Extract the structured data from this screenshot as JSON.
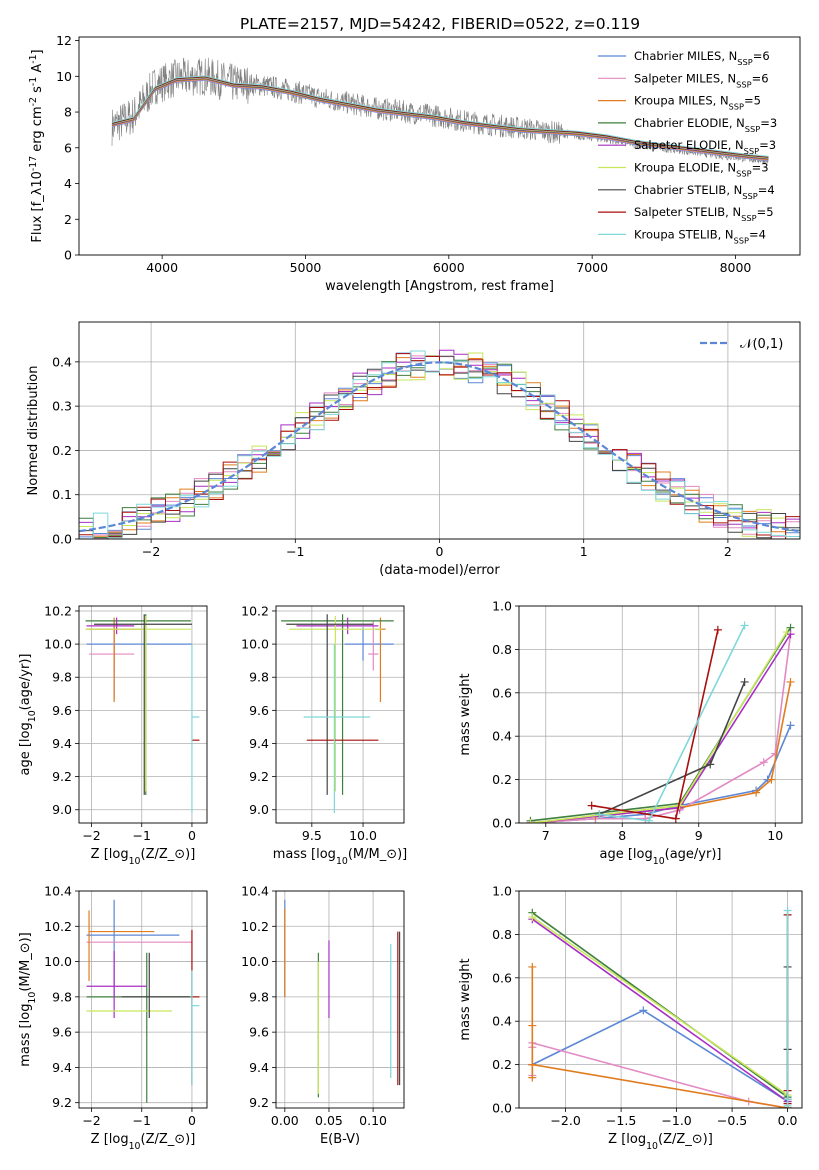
{
  "figure_title": "PLATE=2157, MJD=54242, FIBERID=0522, z=0.119",
  "models": [
    {
      "name": "Chabrier MILES, N$_{SSP}$=6",
      "color": "#5b87d6"
    },
    {
      "name": "Salpeter MILES, N$_{SSP}$=6",
      "color": "#e28ac3"
    },
    {
      "name": "Kroupa MILES, N$_{SSP}$=5",
      "color": "#e07c1f"
    },
    {
      "name": "Chabrier ELODIE, N$_{SSP}$=3",
      "color": "#3f7f3f"
    },
    {
      "name": "Salpeter ELODIE, N$_{SSP}$=3",
      "color": "#a92fc4"
    },
    {
      "name": "Kroupa ELODIE, N$_{SSP}$=3",
      "color": "#c7e65a"
    },
    {
      "name": "Chabrier STELIB, N$_{SSP}$=4",
      "color": "#444444"
    },
    {
      "name": "Salpeter STELIB, N$_{SSP}$=5",
      "color": "#a80f0f"
    },
    {
      "name": "Kroupa STELIB, N$_{SSP}$=4",
      "color": "#7fd7d9"
    }
  ],
  "chart_data": [
    {
      "id": "spectrum",
      "type": "line",
      "xlabel": "wavelength [Angstrom, rest frame]",
      "ylabel": "Flux [f$_\\lambda$10$^{-17}$ erg cm$^{-2}$ s$^{-1}$ A$^{-1}$]",
      "xlim": [
        3420,
        8450
      ],
      "ylim": [
        0,
        12.2
      ],
      "xticks": [
        4000,
        5000,
        6000,
        7000,
        8000
      ],
      "yticks": [
        0,
        2,
        4,
        6,
        8,
        10,
        12
      ],
      "grid": false,
      "legend": "top-right",
      "observed": {
        "color": "#808080",
        "x": [
          3650,
          3800,
          3950,
          4100,
          4300,
          4500,
          4700,
          4900,
          5100,
          5300,
          5500,
          5700,
          5900,
          6100,
          6300,
          6500,
          6700,
          6900,
          7100,
          7300,
          7500,
          7700,
          7900,
          8100,
          8230
        ],
        "y": [
          7.2,
          7.8,
          9.5,
          9.9,
          10.0,
          9.6,
          9.5,
          9.2,
          8.8,
          8.5,
          8.2,
          8.0,
          7.8,
          7.5,
          7.3,
          7.1,
          6.9,
          6.7,
          6.5,
          6.2,
          6.0,
          5.8,
          5.6,
          5.4,
          5.3
        ]
      },
      "models_curve": {
        "x": [
          3650,
          3800,
          3950,
          4100,
          4300,
          4500,
          4700,
          4900,
          5100,
          5300,
          5500,
          5700,
          5900,
          6100,
          6300,
          6500,
          6700,
          6900,
          7100,
          7300,
          7500,
          7700,
          7900,
          8100,
          8230
        ],
        "y": [
          7.3,
          7.6,
          9.3,
          9.8,
          9.9,
          9.5,
          9.4,
          9.1,
          8.7,
          8.4,
          8.1,
          7.9,
          7.7,
          7.4,
          7.2,
          7.0,
          6.9,
          6.8,
          6.6,
          6.3,
          6.1,
          5.9,
          5.7,
          5.5,
          5.4
        ]
      }
    },
    {
      "id": "residuals",
      "type": "line",
      "xlabel": "(data-model)/error",
      "ylabel": "Normed distribution",
      "xlim": [
        -2.5,
        2.5
      ],
      "ylim": [
        0,
        0.49
      ],
      "xticks": [
        -2,
        -1,
        0,
        1,
        2
      ],
      "yticks": [
        0.0,
        0.1,
        0.2,
        0.3,
        0.4
      ],
      "grid": true,
      "legend": "top-right",
      "reference_curve": {
        "name": "$\\mathcal{N}(0,1)$",
        "mean": 0,
        "sigma": 1,
        "color": "#5b87d6"
      },
      "histogram_bin_width": 0.1
    },
    {
      "id": "age_vs_Z",
      "type": "scatter",
      "xlabel": "Z [log$_{10}$($Z$/$Z_\\odot$)]",
      "ylabel": "age  [log$_{10}$($age$/$yr$)]",
      "xlim": [
        -2.25,
        0.3
      ],
      "ylim": [
        8.92,
        10.23
      ],
      "xticks": [
        -2,
        -1,
        0
      ],
      "yticks": [
        9.0,
        9.2,
        9.4,
        9.6,
        9.8,
        10.0,
        10.2
      ],
      "grid": true,
      "series": [
        {
          "model": 0,
          "x": -1.55,
          "xerr": [
            0.55,
            1.55
          ],
          "y": 10.0,
          "yerr": [
            0.33,
            0.1
          ]
        },
        {
          "model": 1,
          "x": -1.55,
          "xerr": [
            0.5,
            0.4
          ],
          "y": 9.94,
          "yerr": [
            0.1,
            0.2
          ]
        },
        {
          "model": 2,
          "x": -1.55,
          "xerr": [
            0.55,
            0.55
          ],
          "y": 10.09,
          "yerr": [
            0.44,
            0.07
          ]
        },
        {
          "model": 3,
          "x": -0.92,
          "xerr": [
            1.2,
            0.9
          ],
          "y": 10.14,
          "yerr": [
            1.05,
            0.04
          ]
        },
        {
          "model": 4,
          "x": -1.5,
          "xerr": [
            0.6,
            0.35
          ],
          "y": 10.11,
          "yerr": [
            0.05,
            0.05
          ]
        },
        {
          "model": 5,
          "x": -0.92,
          "xerr": [
            1.2,
            0.9
          ],
          "y": 10.09,
          "yerr": [
            0.98,
            0.08
          ]
        },
        {
          "model": 6,
          "x": -0.95,
          "xerr": [
            1.0,
            0.95
          ],
          "y": 10.12,
          "yerr": [
            1.03,
            0.06
          ]
        },
        {
          "model": 7,
          "x": 0.0,
          "xerr": [
            0.0,
            0.15
          ],
          "y": 9.42,
          "yerr": [
            0.0,
            0.0
          ]
        },
        {
          "model": 8,
          "x": 0.0,
          "xerr": [
            0.0,
            0.15
          ],
          "y": 9.56,
          "yerr": [
            0.58,
            0.44
          ]
        }
      ]
    },
    {
      "id": "age_vs_mass",
      "type": "scatter",
      "xlabel": "mass [log$_{10}$($M$/$M_\\odot$)]",
      "ylabel": "",
      "xlim": [
        9.15,
        10.4
      ],
      "ylim": [
        8.92,
        10.23
      ],
      "xticks": [
        9.5,
        10.0
      ],
      "yticks": [
        9.0,
        9.2,
        9.4,
        9.6,
        9.8,
        10.0,
        10.2
      ],
      "grid": true,
      "series": [
        {
          "model": 0,
          "x": 10.0,
          "xerr": [
            0.18,
            0.3
          ],
          "y": 10.0,
          "yerr": [
            0.1,
            0.1
          ]
        },
        {
          "model": 1,
          "x": 10.1,
          "xerr": [
            0.05,
            0.05
          ],
          "y": 9.94,
          "yerr": [
            0.1,
            0.2
          ]
        },
        {
          "model": 2,
          "x": 10.17,
          "xerr": [
            0.05,
            0.05
          ],
          "y": 10.09,
          "yerr": [
            0.44,
            0.07
          ]
        },
        {
          "model": 3,
          "x": 9.8,
          "xerr": [
            0.6,
            0.5
          ],
          "y": 10.14,
          "yerr": [
            1.05,
            0.04
          ]
        },
        {
          "model": 4,
          "x": 9.85,
          "xerr": [
            0.5,
            0.3
          ],
          "y": 10.11,
          "yerr": [
            0.05,
            0.05
          ]
        },
        {
          "model": 5,
          "x": 9.73,
          "xerr": [
            0.45,
            0.45
          ],
          "y": 10.09,
          "yerr": [
            0.98,
            0.08
          ]
        },
        {
          "model": 6,
          "x": 9.65,
          "xerr": [
            0.4,
            0.45
          ],
          "y": 10.12,
          "yerr": [
            1.03,
            0.06
          ]
        },
        {
          "model": 7,
          "x": 9.8,
          "xerr": [
            0.35,
            0.35
          ],
          "y": 9.42,
          "yerr": [
            0.0,
            0.0
          ]
        },
        {
          "model": 8,
          "x": 9.72,
          "xerr": [
            0.3,
            0.35
          ],
          "y": 9.56,
          "yerr": [
            0.58,
            0.44
          ]
        }
      ]
    },
    {
      "id": "mass_weight_vs_age",
      "type": "line",
      "xlabel": "age  [log$_{10}$($age$/$yr$)]",
      "ylabel": "mass weight",
      "xlim": [
        6.65,
        10.35
      ],
      "ylim": [
        0,
        1.0
      ],
      "xticks": [
        7,
        8,
        9,
        10
      ],
      "yticks": [
        0.0,
        0.2,
        0.4,
        0.6,
        0.8,
        1.0
      ],
      "grid": true,
      "series": [
        {
          "model": 0,
          "x": [
            6.8,
            7.65,
            8.3,
            8.75,
            9.75,
            9.9,
            10.2
          ],
          "y": [
            0.0,
            0.02,
            0.04,
            0.08,
            0.15,
            0.2,
            0.45
          ]
        },
        {
          "model": 1,
          "x": [
            6.8,
            7.65,
            8.3,
            8.75,
            9.85,
            10.0,
            10.2
          ],
          "y": [
            0.0,
            0.02,
            0.02,
            0.06,
            0.28,
            0.32,
            0.87
          ]
        },
        {
          "model": 2,
          "x": [
            6.8,
            7.65,
            8.75,
            9.75,
            9.95,
            10.2
          ],
          "y": [
            0.0,
            0.03,
            0.07,
            0.14,
            0.2,
            0.65
          ]
        },
        {
          "model": 3,
          "x": [
            6.8,
            8.75,
            10.2
          ],
          "y": [
            0.01,
            0.09,
            0.9
          ]
        },
        {
          "model": 4,
          "x": [
            6.8,
            8.75,
            10.2
          ],
          "y": [
            0.0,
            0.07,
            0.87
          ]
        },
        {
          "model": 5,
          "x": [
            6.8,
            8.75,
            10.15
          ],
          "y": [
            0.0,
            0.08,
            0.88
          ]
        },
        {
          "model": 6,
          "x": [
            7.7,
            9.15,
            9.6
          ],
          "y": [
            0.04,
            0.27,
            0.65
          ]
        },
        {
          "model": 7,
          "x": [
            7.6,
            8.7,
            9.25
          ],
          "y": [
            0.08,
            0.02,
            0.89
          ]
        },
        {
          "model": 8,
          "x": [
            7.7,
            8.35,
            9.6
          ],
          "y": [
            0.04,
            0.01,
            0.91
          ]
        }
      ]
    },
    {
      "id": "mass_vs_Z",
      "type": "scatter",
      "xlabel": "Z [log$_{10}$($Z$/$Z_\\odot$)]",
      "ylabel": "mass [log$_{10}$($M$/$M_\\odot$)]",
      "xlim": [
        -2.25,
        0.3
      ],
      "ylim": [
        9.17,
        10.4
      ],
      "xticks": [
        -2,
        -1,
        0
      ],
      "yticks": [
        9.2,
        9.4,
        9.6,
        9.8,
        10.0,
        10.2,
        10.4
      ],
      "grid": true,
      "series": [
        {
          "model": 0,
          "x": -1.55,
          "xerr": [
            0.55,
            1.3
          ],
          "y": 10.15,
          "yerr": [
            0.35,
            0.2
          ]
        },
        {
          "model": 1,
          "x": -1.55,
          "xerr": [
            0.55,
            1.55
          ],
          "y": 10.11,
          "yerr": [
            0.0,
            0.0
          ]
        },
        {
          "model": 2,
          "x": -2.05,
          "xerr": [
            0.0,
            1.3
          ],
          "y": 10.17,
          "yerr": [
            0.28,
            0.12
          ]
        },
        {
          "model": 3,
          "x": -0.9,
          "xerr": [
            1.2,
            0.9
          ],
          "y": 9.8,
          "yerr": [
            0.6,
            0.25
          ]
        },
        {
          "model": 4,
          "x": -1.55,
          "xerr": [
            0.55,
            0.65
          ],
          "y": 9.86,
          "yerr": [
            0.18,
            0.2
          ]
        },
        {
          "model": 5,
          "x": -1.3,
          "xerr": [
            0.8,
            0.9
          ],
          "y": 9.72,
          "yerr": [
            0.0,
            0.0
          ]
        },
        {
          "model": 6,
          "x": -0.85,
          "xerr": [
            0.55,
            0.8
          ],
          "y": 9.8,
          "yerr": [
            0.12,
            0.25
          ]
        },
        {
          "model": 7,
          "x": 0.0,
          "xerr": [
            0.0,
            0.15
          ],
          "y": 9.8,
          "yerr": [
            0.5,
            0.38
          ]
        },
        {
          "model": 8,
          "x": 0.0,
          "xerr": [
            0.0,
            0.15
          ],
          "y": 9.75,
          "yerr": [
            0.45,
            0.2
          ]
        }
      ]
    },
    {
      "id": "mass_vs_ebv",
      "type": "scatter",
      "xlabel": "E(B-V)",
      "ylabel": "",
      "xlim": [
        -0.01,
        0.135
      ],
      "ylim": [
        9.17,
        10.4
      ],
      "xticks": [
        0.0,
        0.05,
        0.1
      ],
      "yticks": [
        9.2,
        9.4,
        9.6,
        9.8,
        10.0,
        10.2,
        10.4
      ],
      "grid": true,
      "series": [
        {
          "model": 0,
          "x": 0.0,
          "y": 10.05,
          "yerr": [
            0.25,
            0.3
          ]
        },
        {
          "model": 1,
          "x": 0.0,
          "y": 10.1,
          "yerr": [
            0.1,
            0.1
          ]
        },
        {
          "model": 2,
          "x": 0.0,
          "y": 10.05,
          "yerr": [
            0.25,
            0.25
          ]
        },
        {
          "model": 3,
          "x": 0.038,
          "y": 9.63,
          "yerr": [
            0.4,
            0.42
          ]
        },
        {
          "model": 4,
          "x": 0.05,
          "y": 9.9,
          "yerr": [
            0.22,
            0.22
          ]
        },
        {
          "model": 5,
          "x": 0.038,
          "y": 9.6,
          "yerr": [
            0.35,
            0.4
          ]
        },
        {
          "model": 6,
          "x": 0.13,
          "y": 9.7,
          "yerr": [
            0.4,
            0.47
          ]
        },
        {
          "model": 7,
          "x": 0.128,
          "y": 9.75,
          "yerr": [
            0.45,
            0.42
          ]
        },
        {
          "model": 8,
          "x": 0.12,
          "y": 9.72,
          "yerr": [
            0.38,
            0.38
          ]
        }
      ]
    },
    {
      "id": "mass_weight_vs_Z",
      "type": "line",
      "xlabel": "Z [log$_{10}$($Z$/$Z_\\odot$)]",
      "ylabel": "mass weight",
      "xlim": [
        -2.42,
        0.13
      ],
      "ylim": [
        0,
        1.0
      ],
      "xticks": [
        -2.0,
        -1.5,
        -1.0,
        -0.5,
        0.0
      ],
      "yticks": [
        0.0,
        0.2,
        0.4,
        0.6,
        0.8,
        1.0
      ],
      "grid": true,
      "series": [
        {
          "model": 0,
          "x": [
            -2.3,
            -1.3,
            0.0
          ],
          "y": [
            0.2,
            0.45,
            0.03
          ]
        },
        {
          "model": 1,
          "x": [
            -2.3,
            -2.3,
            -2.3,
            -2.3,
            -0.35,
            0.0
          ],
          "y": [
            0.15,
            0.2,
            0.28,
            0.3,
            0.03,
            0.0
          ]
        },
        {
          "model": 2,
          "x": [
            -2.3,
            -2.3,
            -2.3,
            -2.3,
            -2.3,
            0.0
          ],
          "y": [
            0.14,
            0.2,
            0.38,
            0.65,
            0.2,
            0.0
          ]
        },
        {
          "model": 3,
          "x": [
            -2.3,
            0.0
          ],
          "y": [
            0.9,
            0.05
          ]
        },
        {
          "model": 4,
          "x": [
            -2.3,
            0.0
          ],
          "y": [
            0.87,
            0.03
          ]
        },
        {
          "model": 5,
          "x": [
            -2.3,
            0.0
          ],
          "y": [
            0.88,
            0.06
          ]
        },
        {
          "model": 6,
          "x": [
            0.0,
            0.0,
            0.0,
            0.0
          ],
          "y": [
            0.04,
            0.27,
            0.65,
            0.0
          ]
        },
        {
          "model": 7,
          "x": [
            0.0,
            0.0,
            0.0
          ],
          "y": [
            0.02,
            0.08,
            0.89
          ]
        },
        {
          "model": 8,
          "x": [
            0.0,
            0.0,
            0.0
          ],
          "y": [
            0.01,
            0.04,
            0.91
          ]
        }
      ]
    }
  ]
}
